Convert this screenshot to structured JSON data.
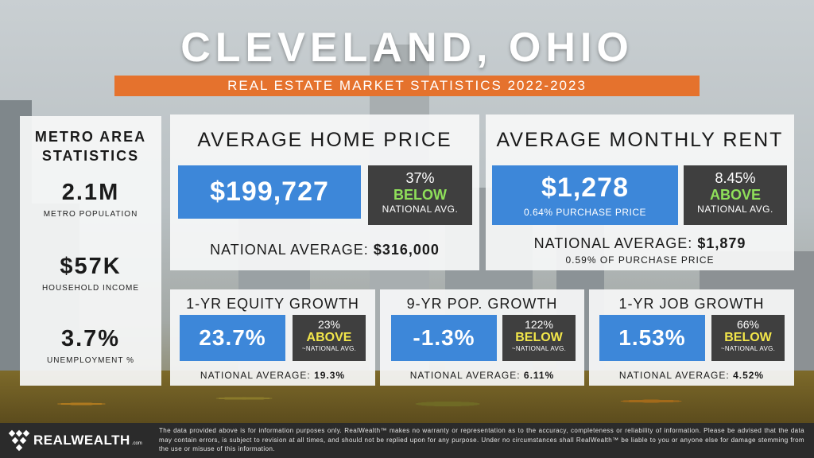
{
  "title": "CLEVELAND, OHIO",
  "subtitle": "REAL ESTATE MARKET STATISTICS 2022-2023",
  "colors": {
    "accent_orange": "#e5722d",
    "blue_box": "#3d87d9",
    "dark_box": "#3f3f3f",
    "above_green": "#8fe05a",
    "below_yellow": "#f2e64a"
  },
  "metro": {
    "title_line1": "METRO AREA",
    "title_line2": "STATISTICS",
    "population_value": "2.1M",
    "population_label": "METRO POPULATION",
    "income_value": "$57K",
    "income_label": "HOUSEHOLD INCOME",
    "unemployment_value": "3.7%",
    "unemployment_label": "UNEMPLOYMENT %"
  },
  "home_price": {
    "heading": "AVERAGE HOME PRICE",
    "value": "$199,727",
    "pct": "37%",
    "direction": "BELOW",
    "compare_label": "NATIONAL AVG.",
    "national_label": "NATIONAL AVERAGE:",
    "national_value": "$316,000"
  },
  "rent": {
    "heading": "AVERAGE MONTHLY RENT",
    "value": "$1,278",
    "sub": "0.64% PURCHASE PRICE",
    "pct": "8.45%",
    "direction": "ABOVE",
    "compare_label": "NATIONAL AVG.",
    "national_label": "NATIONAL AVERAGE:",
    "national_value": "$1,879",
    "national_sub": "0.59% OF PURCHASE PRICE"
  },
  "equity": {
    "heading": "1-YR EQUITY GROWTH",
    "value": "23.7%",
    "pct": "23%",
    "direction": "ABOVE",
    "compare_label": "~NATIONAL AVG.",
    "national_label": "NATIONAL AVERAGE:",
    "national_value": "19.3%"
  },
  "population": {
    "heading": "9-YR POP. GROWTH",
    "value": "-1.3%",
    "pct": "122%",
    "direction": "BELOW",
    "compare_label": "~NATIONAL AVG.",
    "national_label": "NATIONAL AVERAGE:",
    "national_value": "6.11%"
  },
  "jobs": {
    "heading": "1-YR JOB GROWTH",
    "value": "1.53%",
    "pct": "66%",
    "direction": "BELOW",
    "compare_label": "~NATIONAL AVG.",
    "national_label": "NATIONAL AVERAGE:",
    "national_value": "4.52%"
  },
  "footer": {
    "brand": "REALWEALTH",
    "brand_suffix": ".com",
    "disclaimer": "The data provided above is for information purposes only. RealWealth™ makes no warranty or representation as to the accuracy, completeness or reliability of information. Please be advised that the data may contain errors, is subject to revision at all times, and should not be replied upon for any purpose. Under no circumstances shall RealWealth™ be liable to you or anyone else for damage stemming from the use or misuse of this information."
  }
}
